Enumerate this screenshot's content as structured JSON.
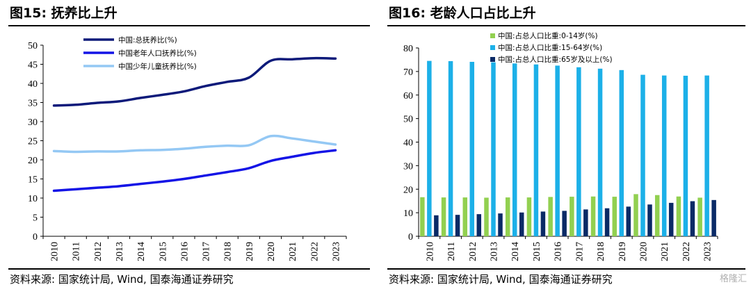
{
  "left": {
    "title": "图15:  抚养比上升",
    "source": "资料来源:  国家统计局,  Wind,  国泰海通证券研究"
  },
  "right": {
    "title": "图16:  老龄人口占比上升",
    "source": "资料来源:  国家统计局,  Wind,  国泰海通证券研究"
  },
  "watermark": "格隆汇",
  "chart_data": [
    {
      "type": "line",
      "title": "",
      "xlabel": "",
      "ylabel": "",
      "ylim": [
        0,
        50
      ],
      "yticks": [
        0,
        5,
        10,
        15,
        20,
        25,
        30,
        35,
        40,
        45,
        50
      ],
      "x": [
        "2010",
        "2011",
        "2012",
        "2013",
        "2014",
        "2015",
        "2016",
        "2017",
        "2018",
        "2019",
        "2020",
        "2021",
        "2022",
        "2023"
      ],
      "grid": false,
      "legend_position": "top-left",
      "series": [
        {
          "name": "中国:总抚养比(%)",
          "color": "#0d1a7a",
          "values": [
            34.2,
            34.4,
            34.9,
            35.3,
            36.2,
            37.0,
            37.9,
            39.3,
            40.4,
            41.5,
            45.9,
            46.3,
            46.6,
            46.5
          ]
        },
        {
          "name": "中国老年人口抚养比(%)",
          "color": "#1414e6",
          "values": [
            11.9,
            12.3,
            12.7,
            13.1,
            13.7,
            14.3,
            15.0,
            15.9,
            16.8,
            17.8,
            19.7,
            20.8,
            21.8,
            22.5
          ]
        },
        {
          "name": "中国少年儿童抚养比(%)",
          "color": "#94c8f4",
          "values": [
            22.3,
            22.1,
            22.2,
            22.2,
            22.5,
            22.6,
            22.9,
            23.4,
            23.7,
            23.8,
            26.2,
            25.6,
            24.8,
            24.0
          ]
        }
      ]
    },
    {
      "type": "bar",
      "title": "",
      "xlabel": "",
      "ylabel": "",
      "ylim": [
        0,
        80
      ],
      "yticks": [
        0,
        10,
        20,
        30,
        40,
        50,
        60,
        70,
        80
      ],
      "categories": [
        "2010",
        "2011",
        "2012",
        "2013",
        "2014",
        "2015",
        "2016",
        "2017",
        "2018",
        "2019",
        "2020",
        "2021",
        "2022",
        "2023"
      ],
      "grid": false,
      "legend_position": "top-center",
      "series": [
        {
          "name": "中国:占总人口比重:0-14岁(%)",
          "color": "#92d050",
          "values": [
            16.6,
            16.5,
            16.5,
            16.4,
            16.5,
            16.5,
            16.7,
            16.8,
            16.9,
            16.8,
            17.9,
            17.5,
            16.9,
            16.4
          ]
        },
        {
          "name": "中国:占总人口比重:15-64岁(%)",
          "color": "#1cb0e8",
          "values": [
            74.5,
            74.4,
            74.1,
            73.9,
            73.4,
            73.0,
            72.5,
            71.8,
            71.2,
            70.6,
            68.6,
            68.3,
            68.2,
            68.3
          ]
        },
        {
          "name": "中国:占总人口比重:65岁及以上(%)",
          "color": "#0a2a66",
          "values": [
            8.9,
            9.1,
            9.4,
            9.7,
            10.1,
            10.5,
            10.8,
            11.4,
            11.9,
            12.6,
            13.5,
            14.2,
            14.9,
            15.4
          ]
        }
      ]
    }
  ]
}
